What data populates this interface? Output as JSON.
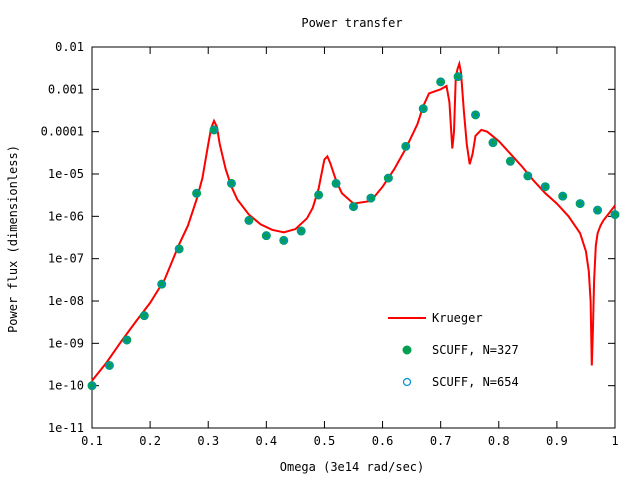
{
  "chart_data": {
    "type": "line",
    "title": "Power transfer",
    "xlabel": "Omega (3e14 rad/sec)",
    "ylabel": "Power flux (dimensionless)",
    "xlim": [
      0.1,
      1.0
    ],
    "ylim": [
      1e-11,
      0.01
    ],
    "yscale": "log",
    "grid": false,
    "legend_position": "lower-right",
    "x_ticks": [
      0.1,
      0.2,
      0.3,
      0.4,
      0.5,
      0.6,
      0.7,
      0.8,
      0.9,
      1.0
    ],
    "x_tick_labels": [
      "0.1",
      "0.2",
      "0.3",
      "0.4",
      "0.5",
      "0.6",
      "0.7",
      "0.8",
      "0.9",
      "1"
    ],
    "y_ticks": [
      1e-11,
      1e-10,
      1e-09,
      1e-08,
      1e-07,
      1e-06,
      1e-05,
      0.0001,
      0.001,
      0.01
    ],
    "y_tick_labels": [
      "1e-11",
      "1e-10",
      "1e-09",
      "1e-08",
      "1e-07",
      "1e-06",
      "1e-05",
      "0.0001",
      "0.001",
      "0.01"
    ],
    "series": [
      {
        "name": "Krueger",
        "style": "line",
        "color": "#ff0000",
        "x": [
          0.1,
          0.125,
          0.15,
          0.175,
          0.2,
          0.225,
          0.25,
          0.265,
          0.28,
          0.29,
          0.3,
          0.305,
          0.31,
          0.315,
          0.32,
          0.33,
          0.34,
          0.35,
          0.37,
          0.39,
          0.41,
          0.43,
          0.45,
          0.47,
          0.48,
          0.49,
          0.495,
          0.5,
          0.505,
          0.51,
          0.52,
          0.53,
          0.55,
          0.58,
          0.6,
          0.62,
          0.64,
          0.66,
          0.67,
          0.68,
          0.69,
          0.7,
          0.71,
          0.715,
          0.72,
          0.723,
          0.726,
          0.729,
          0.732,
          0.735,
          0.74,
          0.745,
          0.75,
          0.755,
          0.76,
          0.77,
          0.78,
          0.8,
          0.82,
          0.84,
          0.86,
          0.88,
          0.9,
          0.92,
          0.94,
          0.95,
          0.955,
          0.958,
          0.96,
          0.962,
          0.964,
          0.967,
          0.97,
          0.975,
          0.98,
          0.99,
          1.0
        ],
        "y": [
          1.3e-10,
          3.5e-10,
          1.1e-09,
          3.2e-09,
          9e-09,
          3.2e-08,
          2.2e-07,
          6e-07,
          2.5e-06,
          8e-06,
          5e-05,
          0.00012,
          0.00018,
          0.00013,
          5e-05,
          1.3e-05,
          5e-06,
          2.5e-06,
          1.1e-06,
          6.5e-07,
          4.8e-07,
          4.2e-07,
          5e-07,
          9e-07,
          1.6e-06,
          4.5e-06,
          1e-05,
          2.2e-05,
          2.6e-05,
          1.8e-05,
          7e-06,
          3.5e-06,
          2e-06,
          2.3e-06,
          5e-06,
          1.3e-05,
          4e-05,
          0.00015,
          0.0004,
          0.0008,
          0.0009,
          0.001,
          0.0012,
          0.0005,
          4e-05,
          0.0001,
          0.002,
          0.003,
          0.004,
          0.0025,
          0.0003,
          5e-05,
          1.7e-05,
          3e-05,
          8e-05,
          0.00011,
          0.0001,
          6e-05,
          3e-05,
          1.5e-05,
          7e-06,
          3.5e-06,
          2e-06,
          1e-06,
          4e-07,
          1.5e-07,
          5e-08,
          1e-08,
          3e-10,
          2e-09,
          3e-08,
          2e-07,
          4e-07,
          6e-07,
          8e-07,
          1.2e-06,
          1.8e-06
        ]
      },
      {
        "name": "SCUFF, N=327",
        "style": "points",
        "color": "#00a050",
        "x": [
          0.1,
          0.13,
          0.16,
          0.19,
          0.22,
          0.25,
          0.28,
          0.31,
          0.34,
          0.37,
          0.4,
          0.43,
          0.46,
          0.49,
          0.52,
          0.55,
          0.58,
          0.61,
          0.64,
          0.67,
          0.7,
          0.73,
          0.76,
          0.79,
          0.82,
          0.85,
          0.88,
          0.91,
          0.94,
          0.97,
          1.0
        ],
        "y": [
          1e-10,
          3e-10,
          1.2e-09,
          4.5e-09,
          2.5e-08,
          1.7e-07,
          3.5e-06,
          0.00011,
          6e-06,
          8e-07,
          3.5e-07,
          2.7e-07,
          4.5e-07,
          3.2e-06,
          6e-06,
          1.7e-06,
          2.7e-06,
          8e-06,
          4.5e-05,
          0.00035,
          0.0015,
          0.002,
          0.00025,
          5.5e-05,
          2e-05,
          9e-06,
          5e-06,
          3e-06,
          2e-06,
          1.4e-06,
          1.1e-06
        ]
      },
      {
        "name": "SCUFF, N=654",
        "style": "open-points",
        "color": "#0090d0",
        "x": [
          0.1,
          0.13,
          0.16,
          0.19,
          0.22,
          0.25,
          0.28,
          0.31,
          0.34,
          0.37,
          0.4,
          0.43,
          0.46,
          0.49,
          0.52,
          0.55,
          0.58,
          0.61,
          0.64,
          0.67,
          0.7,
          0.73,
          0.76,
          0.79,
          0.82,
          0.85,
          0.88,
          0.91,
          0.94,
          0.97,
          1.0
        ],
        "y": [
          1e-10,
          3e-10,
          1.2e-09,
          4.5e-09,
          2.5e-08,
          1.7e-07,
          3.5e-06,
          0.00011,
          6e-06,
          8e-07,
          3.5e-07,
          2.7e-07,
          4.5e-07,
          3.2e-06,
          6e-06,
          1.7e-06,
          2.7e-06,
          8e-06,
          4.5e-05,
          0.00035,
          0.0015,
          0.002,
          0.00025,
          5.5e-05,
          2e-05,
          9e-06,
          5e-06,
          3e-06,
          2e-06,
          1.4e-06,
          1.1e-06
        ]
      }
    ]
  }
}
